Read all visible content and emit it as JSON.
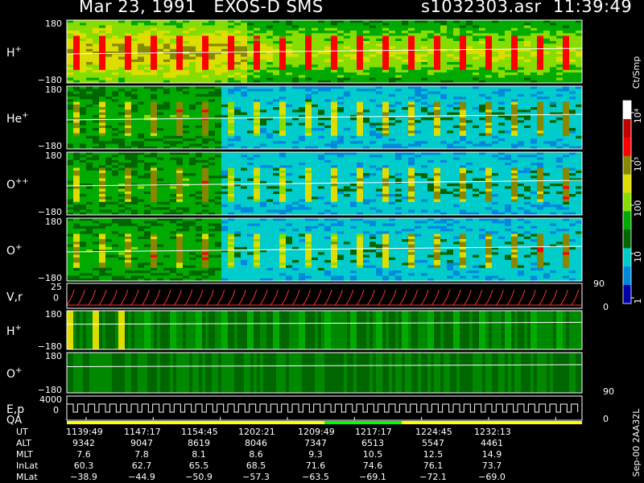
{
  "header": {
    "date": "Mar 23, 1991",
    "instrument": "EXOS-D SMS",
    "file": "s1032303.asr",
    "time": "11:39:49"
  },
  "panels": [
    {
      "id": "hplus",
      "label": "H",
      "sup": "+",
      "ytop": "180",
      "ybot": "−180"
    },
    {
      "id": "heplus",
      "label": "He",
      "sup": "+",
      "ytop": "180",
      "ybot": "−180"
    },
    {
      "id": "oplusplus",
      "label": "O",
      "sup": "++",
      "ytop": "180",
      "ybot": "−180"
    },
    {
      "id": "oplus",
      "label": "O",
      "sup": "+",
      "ytop": "180",
      "ybot": "−180"
    },
    {
      "id": "vr",
      "label": "V,r",
      "ytop": "25",
      "ymid": "0",
      "right_top": "90",
      "right_bot": "0"
    },
    {
      "id": "hplus2",
      "label": "H",
      "sup": "+",
      "ytop": "180",
      "ybot": "−180"
    },
    {
      "id": "oplus2",
      "label": "O",
      "sup": "+",
      "ytop": "180",
      "ybot": "−180",
      "right_bot": "90"
    },
    {
      "id": "ep",
      "label": "E,p",
      "label2": "QA",
      "ytop": "4000",
      "ymid": "0",
      "right_bot": "0"
    }
  ],
  "colorbar": {
    "unit": "Ct/Smp",
    "ticks": [
      "10⁴",
      "10³",
      "100",
      "10",
      "1"
    ],
    "colors": [
      "#ffffff",
      "#c00000",
      "#ff0000",
      "#888800",
      "#dddd00",
      "#88dd00",
      "#00aa00",
      "#006600",
      "#00cccc",
      "#0088dd",
      "#0000aa"
    ]
  },
  "side_text": "Sep-00  2AA32L",
  "chart_data": {
    "type": "heatmap",
    "ut": [
      "1139:49",
      "1147:17",
      "1154:45",
      "1202:21",
      "1209:49",
      "1217:17",
      "1224:45",
      "1232:13"
    ],
    "rows": [
      {
        "label": "UT",
        "values": [
          "1139:49",
          "1147:17",
          "1154:45",
          "1202:21",
          "1209:49",
          "1217:17",
          "1224:45",
          "1232:13"
        ]
      },
      {
        "label": "ALT",
        "values": [
          "9342",
          "9047",
          "8619",
          "8046",
          "7347",
          "6513",
          "5547",
          "4461"
        ]
      },
      {
        "label": "MLT",
        "values": [
          "7.6",
          "7.8",
          "8.1",
          "8.6",
          "9.3",
          "10.5",
          "12.5",
          "14.9"
        ]
      },
      {
        "label": "InLat",
        "values": [
          "60.3",
          "62.7",
          "65.5",
          "68.5",
          "71.6",
          "74.6",
          "76.1",
          "73.7"
        ]
      },
      {
        "label": "MLat",
        "values": [
          "−38.9",
          "−44.9",
          "−50.9",
          "−57.3",
          "−63.5",
          "−69.1",
          "−72.1",
          "−69.0"
        ]
      }
    ]
  }
}
